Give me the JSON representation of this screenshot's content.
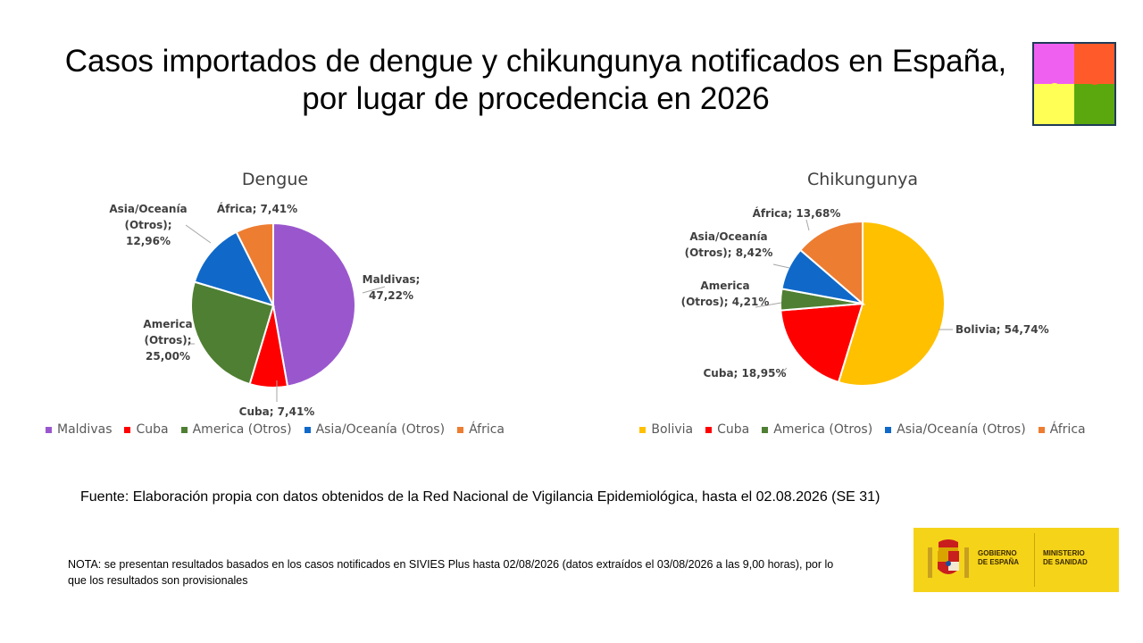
{
  "title": {
    "line1": "Casos importados de dengue y chikungunya notificados en España,",
    "line2": "por lugar de procedencia en 2026"
  },
  "chart_data": [
    {
      "type": "pie",
      "title": "Dengue",
      "categories": [
        "Maldivas",
        "Cuba",
        "America (Otros)",
        "Asia/Oceanía (Otros)",
        "África"
      ],
      "values": [
        47.22,
        7.41,
        25.0,
        12.96,
        7.41
      ],
      "colors": [
        "#9a57cd",
        "#ff0000",
        "#4f7f32",
        "#1069c9",
        "#ed7d31"
      ],
      "data_labels": [
        "Maldivas;|47,22%",
        "Cuba; 7,41%",
        "America|(Otros);|25,00%",
        "Asia/Oceanía|(Otros);|12,96%",
        "África; 7,41%"
      ],
      "legend": [
        "Maldivas",
        "Cuba",
        "America (Otros)",
        "Asia/Oceanía (Otros)",
        "África"
      ],
      "legend_position": "bottom"
    },
    {
      "type": "pie",
      "title": "Chikungunya",
      "categories": [
        "Bolivia",
        "Cuba",
        "America (Otros)",
        "Asia/Oceanía (Otros)",
        "África"
      ],
      "values": [
        54.74,
        18.95,
        4.21,
        8.42,
        13.68
      ],
      "colors": [
        "#ffc000",
        "#ff0000",
        "#4f7f32",
        "#1069c9",
        "#ed7d31"
      ],
      "data_labels": [
        "Bolivia; 54,74%",
        "Cuba; 18,95%",
        "America|(Otros); 4,21%",
        "Asia/Oceanía|(Otros); 8,42%",
        "África; 13,68%"
      ],
      "legend": [
        "Bolivia",
        "Cuba",
        "America (Otros)",
        "Asia/Oceanía (Otros)",
        "África"
      ],
      "legend_position": "bottom"
    }
  ],
  "source": "Fuente: Elaboración propia con datos obtenidos de la Red Nacional de Vigilancia Epidemiológica, hasta el 02.08.2026 (SE 31)",
  "note": "NOTA: se presentan resultados basados en los casos notificados en SIVIES Plus hasta 02/08/2026 (datos extraídos el 03/08/2026 a las 9,00 horas), por lo que los resultados son provisionales",
  "logo": {
    "line1": "GOBIERNO",
    "line2": "DE ESPAÑA",
    "line3": "MINISTERIO",
    "line4": "DE SANIDAD"
  },
  "puzzle_colors": [
    "#f060f0",
    "#ff5a2a",
    "#ffff55",
    "#5aa80e"
  ]
}
